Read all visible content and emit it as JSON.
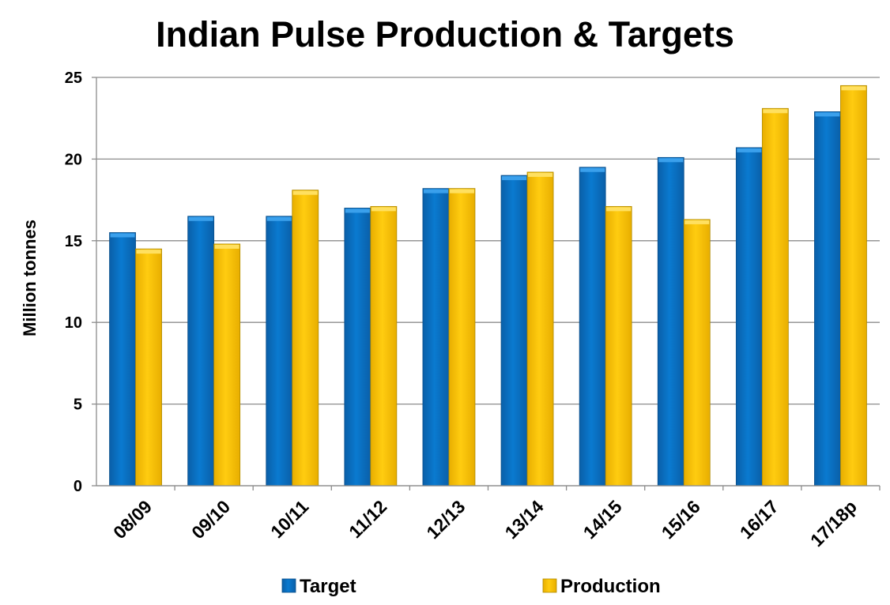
{
  "chart_data": {
    "type": "bar",
    "title": "Indian Pulse Production & Targets",
    "xlabel": "",
    "ylabel": "Million tonnes",
    "ylim": [
      0,
      25
    ],
    "yticks": [
      "0",
      "5",
      "10",
      "15",
      "20",
      "25"
    ],
    "grid": true,
    "legend": "bottom",
    "categories": [
      "08/09",
      "09/10",
      "10/11",
      "11/12",
      "12/13",
      "13/14",
      "14/15",
      "15/16",
      "16/17",
      "17/18p"
    ],
    "series": [
      {
        "name": "Target",
        "color": "#0070C0",
        "values": [
          15.5,
          16.5,
          16.5,
          17.0,
          18.2,
          19.0,
          19.5,
          20.1,
          20.7,
          22.9
        ]
      },
      {
        "name": "Production",
        "color": "#FFC000",
        "values": [
          14.5,
          14.8,
          18.1,
          17.1,
          18.2,
          19.2,
          17.1,
          16.3,
          23.1,
          24.5
        ]
      }
    ]
  }
}
